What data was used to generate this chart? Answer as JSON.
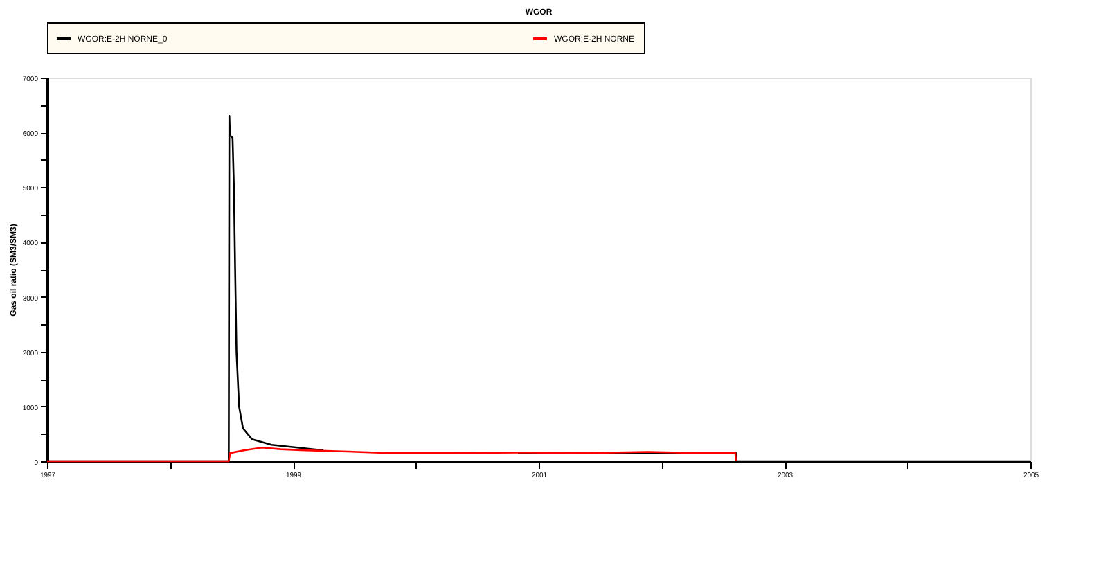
{
  "chart_data": {
    "type": "line",
    "title": "WGOR",
    "ylabel": "Gas oil ratio (SM3/SM3)",
    "xlim": [
      1997,
      2005
    ],
    "ylim": [
      0,
      7000
    ],
    "xticks": [
      1997,
      {
        "value": 1998,
        "label": null
      },
      1999,
      {
        "value": 2000,
        "label": null
      },
      2001,
      {
        "value": 2002,
        "label": null
      },
      2003,
      {
        "value": 2004,
        "label": null
      },
      2005
    ],
    "yticks": [
      0,
      {
        "value": 500,
        "label": null
      },
      1000,
      {
        "value": 1500,
        "label": null
      },
      2000,
      {
        "value": 2500,
        "label": null
      },
      3000,
      {
        "value": 3500,
        "label": null
      },
      4000,
      {
        "value": 4500,
        "label": null
      },
      5000,
      {
        "value": 5500,
        "label": null
      },
      6000,
      {
        "value": 6500,
        "label": null
      },
      7000
    ],
    "legend": "top",
    "grid": false,
    "marker": "none",
    "line_style": "solid",
    "series": [
      {
        "name": "WGOR:E-2H NORNE_0",
        "color": "#000000",
        "x": [
          1997,
          1998.478,
          1998.483,
          1998.488,
          1998.509,
          1998.52,
          1998.53,
          1998.541,
          1998.562,
          1998.594,
          1998.668,
          1998.826,
          1999.248,
          1999.776,
          2000.831,
          2001.887,
          2002.604,
          2002.61,
          2005
        ],
        "values": [
          0,
          0,
          6300,
          5950,
          5900,
          5000,
          3500,
          2000,
          1000,
          600,
          400,
          300,
          200,
          null,
          150,
          150,
          150,
          0,
          0
        ]
      },
      {
        "name": "WGOR:E-2H NORNE",
        "color": "#ff0000",
        "x": [
          1997,
          1998.478,
          1998.49,
          1998.6,
          1998.75,
          1998.9,
          1999.1,
          1999.4,
          1999.776,
          2000.3,
          2000.831,
          2001.4,
          2001.887,
          2002.3,
          2002.6,
          2002.604
        ],
        "values": [
          0,
          0,
          150,
          200,
          250,
          220,
          200,
          180,
          150,
          150,
          160,
          150,
          170,
          150,
          150,
          0
        ]
      }
    ]
  }
}
